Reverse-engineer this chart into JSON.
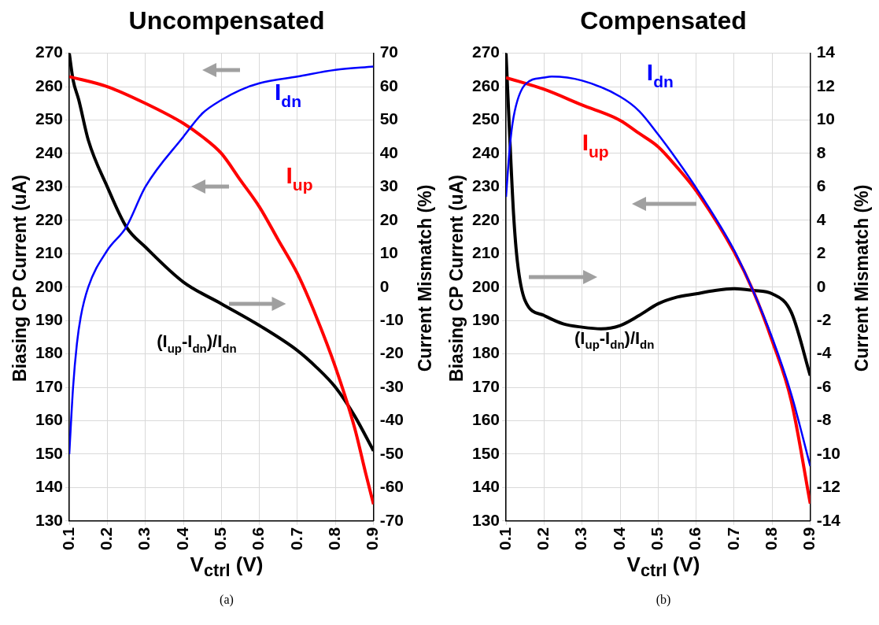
{
  "chart_data": [
    {
      "type": "line",
      "title": "Uncompensated",
      "xlabel": "V$_{ctrl}$ (V)",
      "ylabel": "Biasing CP Current (uA)",
      "y2label": "Current Mismatch (%)",
      "annotations": [
        "(a)"
      ],
      "xlim": [
        0.1,
        0.9
      ],
      "xticks": [
        0.1,
        0.2,
        0.3,
        0.4,
        0.5,
        0.6,
        0.7,
        0.8,
        0.9
      ],
      "ylim": [
        130,
        270
      ],
      "yticks": [
        130,
        140,
        150,
        160,
        170,
        180,
        190,
        200,
        210,
        220,
        230,
        240,
        250,
        260,
        270
      ],
      "y2lim": [
        -70,
        70
      ],
      "y2ticks": [
        -70,
        -60,
        -50,
        -40,
        -30,
        -20,
        -10,
        0,
        10,
        20,
        30,
        40,
        50,
        60,
        70
      ],
      "grid": true,
      "legend": false,
      "line_style": "solid",
      "marker": "none",
      "series": [
        {
          "name": "I$_{dn}$",
          "color": "#0000ff",
          "x": [
            0.1,
            0.11,
            0.12,
            0.13,
            0.15,
            0.2,
            0.25,
            0.3,
            0.4,
            0.45,
            0.5,
            0.55,
            0.6,
            0.7,
            0.8,
            0.9
          ],
          "values": [
            150,
            170,
            183,
            191,
            200,
            211,
            218,
            230,
            245,
            252,
            256,
            259,
            261,
            263,
            265,
            266
          ]
        },
        {
          "name": "I$_{up}$",
          "color": "#ff0000",
          "x": [
            0.1,
            0.2,
            0.3,
            0.4,
            0.45,
            0.5,
            0.55,
            0.6,
            0.65,
            0.7,
            0.75,
            0.8,
            0.85,
            0.88,
            0.9
          ],
          "values": [
            263,
            260,
            255,
            249,
            245,
            240,
            232,
            224,
            214,
            204,
            191,
            176,
            158,
            144,
            135
          ]
        },
        {
          "name": "(I$_{up}$-I$_{dn}$)/I$_{dn}$",
          "color": "#000000",
          "axis": "y2",
          "x": [
            0.1,
            0.11,
            0.125,
            0.15,
            0.2,
            0.25,
            0.3,
            0.4,
            0.5,
            0.6,
            0.7,
            0.75,
            0.8,
            0.85,
            0.9
          ],
          "values": [
            70,
            62,
            56,
            44,
            30,
            18,
            12,
            1.5,
            -5,
            -11.5,
            -19,
            -24,
            -30,
            -38.5,
            -49
          ]
        }
      ]
    },
    {
      "type": "line",
      "title": "Compensated",
      "xlabel": "V$_{ctrl}$ (V)",
      "ylabel": "Biasing CP Current (uA)",
      "y2label": "Current Mismatch (%)",
      "annotations": [
        "(b)"
      ],
      "xlim": [
        0.1,
        0.9
      ],
      "xticks": [
        0.1,
        0.2,
        0.3,
        0.4,
        0.5,
        0.6,
        0.7,
        0.8,
        0.9
      ],
      "ylim": [
        130,
        270
      ],
      "yticks": [
        130,
        140,
        150,
        160,
        170,
        180,
        190,
        200,
        210,
        220,
        230,
        240,
        250,
        260,
        270
      ],
      "y2lim": [
        -14,
        14
      ],
      "y2ticks": [
        -14,
        -12,
        -10,
        -8,
        -6,
        -4,
        -2,
        0,
        2,
        4,
        6,
        8,
        10,
        12,
        14
      ],
      "grid": true,
      "legend": false,
      "line_style": "solid",
      "marker": "none",
      "series": [
        {
          "name": "I$_{dn}$",
          "color": "#0000ff",
          "x": [
            0.1,
            0.11,
            0.12,
            0.15,
            0.2,
            0.22,
            0.3,
            0.4,
            0.45,
            0.5,
            0.55,
            0.6,
            0.7,
            0.75,
            0.8,
            0.85,
            0.9
          ],
          "values": [
            227,
            242,
            251,
            260.6,
            262.7,
            263,
            261.8,
            257,
            252.7,
            245.7,
            238,
            229.7,
            211,
            198.8,
            184.8,
            168,
            146.4
          ]
        },
        {
          "name": "I$_{up}$",
          "color": "#ff0000",
          "x": [
            0.1,
            0.2,
            0.3,
            0.4,
            0.45,
            0.5,
            0.55,
            0.6,
            0.7,
            0.75,
            0.8,
            0.85,
            0.9
          ],
          "values": [
            262.7,
            259.2,
            254.5,
            249.9,
            246,
            242,
            235.8,
            228.8,
            210.5,
            198.8,
            183.9,
            166,
            135.2
          ]
        },
        {
          "name": "(I$_{up}$-I$_{dn}$)/I$_{dn}$",
          "color": "#000000",
          "axis": "y2",
          "x": [
            0.1,
            0.11,
            0.12,
            0.13,
            0.15,
            0.2,
            0.25,
            0.3,
            0.35,
            0.4,
            0.45,
            0.5,
            0.55,
            0.6,
            0.65,
            0.7,
            0.75,
            0.8,
            0.85,
            0.9
          ],
          "values": [
            14,
            8.9,
            4.3,
            1.5,
            -0.8,
            -1.7,
            -2.2,
            -2.4,
            -2.5,
            -2.3,
            -1.7,
            -1,
            -0.6,
            -0.4,
            -0.2,
            -0.1,
            -0.2,
            -0.4,
            -1.5,
            -5.3
          ]
        }
      ]
    }
  ]
}
